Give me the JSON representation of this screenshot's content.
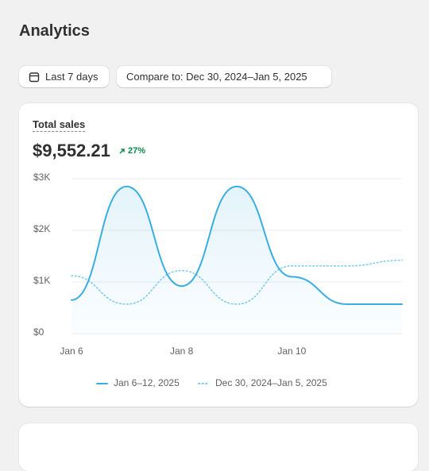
{
  "header": {
    "title": "Analytics"
  },
  "filters": {
    "date_range": "Last 7 days",
    "compare": "Compare to: Dec 30, 2024–Jan 5, 2025"
  },
  "card": {
    "title": "Total sales",
    "value": "$9,552.21",
    "change": "27%"
  },
  "chart_data": {
    "type": "line",
    "categories": [
      "Jan 6",
      null,
      "Jan 8",
      null,
      "Jan 10",
      null,
      null
    ],
    "series": [
      {
        "name": "Jan 6–12, 2025",
        "color": "#3aaee0",
        "line_style": "solid",
        "values": [
          650,
          2850,
          920,
          2850,
          1100,
          570,
          570
        ]
      },
      {
        "name": "Dec 30, 2024–Jan 5, 2025",
        "color": "#7fcdee",
        "line_style": "dotted",
        "values": [
          1120,
          570,
          1220,
          570,
          1310,
          1310,
          1420
        ]
      }
    ],
    "ylim": [
      0,
      3000
    ],
    "yticks": [
      {
        "value": 0,
        "label": "$0"
      },
      {
        "value": 1000,
        "label": "$1K"
      },
      {
        "value": 2000,
        "label": "$2K"
      },
      {
        "value": 3000,
        "label": "$3K"
      }
    ],
    "grid": true
  }
}
